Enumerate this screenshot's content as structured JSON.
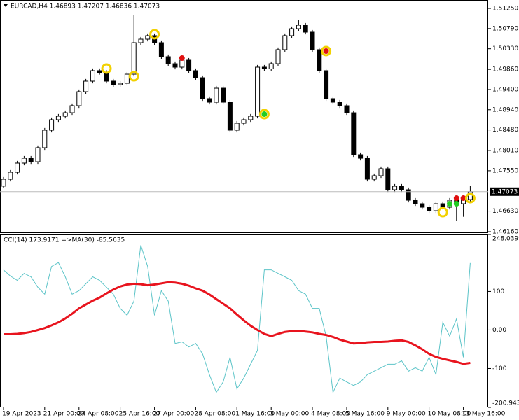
{
  "chart_data": [
    {
      "type": "candlestick",
      "title": "EURCAD,H4  1.46893 1.47207 1.46836 1.47073",
      "open": [
        1.472,
        1.47357,
        1.47516,
        1.47724,
        1.47835,
        1.47755,
        1.48075,
        1.48474,
        1.48713,
        1.48793,
        1.48872,
        1.49032,
        1.49351,
        1.49591,
        1.4983,
        1.4979,
        1.49591,
        1.49511,
        1.49543,
        1.4975,
        1.50468,
        1.50548,
        1.50628,
        1.50468,
        1.50149,
        1.49989,
        1.4991,
        1.50069,
        1.4983,
        1.4967,
        1.49192,
        1.49112,
        1.49431,
        1.49112,
        1.48474,
        1.48633,
        1.48713,
        1.48793,
        1.4991,
        1.4987,
        1.49989,
        1.50309,
        1.50628,
        1.50787,
        1.50867,
        1.50708,
        1.50309,
        1.4983,
        1.49192,
        1.49112,
        1.49032,
        1.48872,
        1.47915,
        1.47835,
        1.47357,
        1.47436,
        1.47596,
        1.47117,
        1.47197,
        1.47117,
        1.46878,
        1.46798,
        1.46718,
        1.46638,
        1.46798,
        1.46718,
        1.46878,
        1.46798,
        1.46893
      ],
      "high": [
        1.47407,
        1.47566,
        1.47774,
        1.47885,
        1.47885,
        1.48125,
        1.48524,
        1.48763,
        1.48843,
        1.48922,
        1.49082,
        1.49401,
        1.49641,
        1.4988,
        1.4988,
        1.4984,
        1.49641,
        1.49593,
        1.498,
        1.511,
        1.50598,
        1.50678,
        1.50678,
        1.50518,
        1.50199,
        1.50039,
        1.50119,
        1.50119,
        1.4988,
        1.4972,
        1.49242,
        1.49481,
        1.49481,
        1.49162,
        1.48683,
        1.48763,
        1.48843,
        1.4996,
        1.4996,
        1.50039,
        1.50359,
        1.50678,
        1.50837,
        1.5098,
        1.50917,
        1.50758,
        1.50359,
        1.4988,
        1.49242,
        1.49162,
        1.49082,
        1.48922,
        1.47965,
        1.47885,
        1.47486,
        1.47646,
        1.47646,
        1.47247,
        1.47247,
        1.47167,
        1.46928,
        1.46848,
        1.46768,
        1.46848,
        1.46848,
        1.46928,
        1.46928,
        1.46943,
        1.47207
      ],
      "low": [
        1.4715,
        1.47307,
        1.47466,
        1.47674,
        1.47705,
        1.47705,
        1.48025,
        1.48424,
        1.48663,
        1.48743,
        1.48822,
        1.48982,
        1.49301,
        1.49541,
        1.4974,
        1.49541,
        1.49461,
        1.49461,
        1.49493,
        1.497,
        1.50418,
        1.50498,
        1.50418,
        1.50099,
        1.49939,
        1.4986,
        1.4986,
        1.4978,
        1.4962,
        1.49142,
        1.49062,
        1.49062,
        1.49062,
        1.48424,
        1.48424,
        1.48583,
        1.48663,
        1.48743,
        1.4982,
        1.4982,
        1.49939,
        1.50259,
        1.50578,
        1.50737,
        1.50658,
        1.50259,
        1.4978,
        1.49142,
        1.49062,
        1.48982,
        1.48822,
        1.47865,
        1.47785,
        1.47307,
        1.47307,
        1.47386,
        1.47067,
        1.47067,
        1.47067,
        1.46828,
        1.46748,
        1.46668,
        1.46588,
        1.46588,
        1.46668,
        1.46668,
        1.464,
        1.465,
        1.46836
      ],
      "close": [
        1.47357,
        1.47516,
        1.47724,
        1.47835,
        1.47755,
        1.48075,
        1.48474,
        1.48713,
        1.48793,
        1.48872,
        1.49032,
        1.49351,
        1.49591,
        1.4983,
        1.4979,
        1.49591,
        1.49511,
        1.49543,
        1.4975,
        1.50468,
        1.50548,
        1.50628,
        1.50468,
        1.50149,
        1.49989,
        1.4991,
        1.50069,
        1.4983,
        1.4967,
        1.49192,
        1.49112,
        1.49431,
        1.49112,
        1.48474,
        1.48633,
        1.48713,
        1.48793,
        1.4991,
        1.4987,
        1.49989,
        1.50309,
        1.50628,
        1.50787,
        1.50867,
        1.50708,
        1.50309,
        1.4983,
        1.49192,
        1.49112,
        1.49032,
        1.48872,
        1.47915,
        1.47835,
        1.47357,
        1.47436,
        1.47596,
        1.47117,
        1.47197,
        1.47117,
        1.46878,
        1.46798,
        1.46718,
        1.46638,
        1.46798,
        1.46718,
        1.46878,
        1.46798,
        1.46893,
        1.47073
      ],
      "markers": [
        {
          "index": 15,
          "price": 1.49878,
          "kind": "ring",
          "color": "#f2d100"
        },
        {
          "index": 19,
          "price": 1.49702,
          "kind": "ring",
          "color": "#f2d100"
        },
        {
          "index": 22,
          "price": 1.5066,
          "kind": "ring",
          "color": "#f2d100"
        },
        {
          "index": 26,
          "price": 1.50117,
          "kind": "dot",
          "color": "#e01010"
        },
        {
          "index": 38,
          "price": 1.4884,
          "kind": "ring",
          "color": "#f2d100"
        },
        {
          "index": 38,
          "price": 1.4884,
          "kind": "dot",
          "color": "#22cc22"
        },
        {
          "index": 47,
          "price": 1.50277,
          "kind": "ring",
          "color": "#f2d100"
        },
        {
          "index": 47,
          "price": 1.50277,
          "kind": "dot",
          "color": "#e01010"
        },
        {
          "index": 64,
          "price": 1.46606,
          "kind": "ring",
          "color": "#f2d100"
        },
        {
          "index": 65,
          "price": 1.46798,
          "kind": "dot",
          "color": "#22cc22"
        },
        {
          "index": 66,
          "price": 1.46925,
          "kind": "dot",
          "color": "#e01010"
        },
        {
          "index": 66,
          "price": 1.46798,
          "kind": "dot",
          "color": "#22cc22"
        },
        {
          "index": 67,
          "price": 1.46925,
          "kind": "dot",
          "color": "#e01010"
        },
        {
          "index": 68,
          "price": 1.46925,
          "kind": "ring",
          "color": "#f2d100"
        }
      ],
      "current_price": 1.47073,
      "ylim": [
        1.46144,
        1.51426
      ],
      "yticks": [
        {
          "value": 1.5125,
          "label": "1.51250"
        },
        {
          "value": 1.5079,
          "label": "1.50790"
        },
        {
          "value": 1.5033,
          "label": "1.50330"
        },
        {
          "value": 1.4986,
          "label": "1.49860"
        },
        {
          "value": 1.494,
          "label": "1.49400"
        },
        {
          "value": 1.4894,
          "label": "1.48940"
        },
        {
          "value": 1.4848,
          "label": "1.48480"
        },
        {
          "value": 1.4801,
          "label": "1.48010"
        },
        {
          "value": 1.4755,
          "label": "1.47550"
        },
        {
          "value": 1.4663,
          "label": "1.46630"
        },
        {
          "value": 1.4616,
          "label": "1.46160"
        }
      ]
    },
    {
      "type": "line",
      "title": "CCI(14) 173.9171  =>MA(30) -85.5635",
      "series": [
        {
          "name": "CCI(14)",
          "color": "#5cc4c8",
          "values": [
            156,
            140,
            129,
            147,
            138,
            111,
            93,
            165,
            175,
            138,
            93,
            102,
            120,
            138,
            129,
            111,
            93,
            56,
            38,
            75,
            220,
            165,
            38,
            102,
            75,
            -35,
            -31,
            -44,
            -35,
            -62,
            -116,
            -162,
            -135,
            -71,
            -153,
            -125,
            -89,
            -53,
            156,
            156,
            147,
            138,
            129,
            102,
            93,
            56,
            56,
            -16,
            -162,
            -125,
            -135,
            -144,
            -135,
            -116,
            -107,
            -98,
            -89,
            -89,
            -80,
            -107,
            -98,
            -107,
            -71,
            -116,
            20,
            -16,
            29,
            -71,
            173.9171
          ]
        },
        {
          "name": "MA(30)",
          "color": "#e8141e",
          "values": [
            -11,
            -11,
            -10,
            -8,
            -5,
            0,
            5,
            12,
            20,
            30,
            42,
            56,
            66,
            76,
            84,
            95,
            105,
            113,
            118,
            120,
            119,
            116,
            118,
            121,
            124,
            123,
            120,
            115,
            108,
            102,
            92,
            80,
            68,
            56,
            40,
            25,
            11,
            0,
            -10,
            -16,
            -10,
            -5,
            -3,
            -2,
            -4,
            -6,
            -10,
            -13,
            -18,
            -25,
            -30,
            -35,
            -34,
            -32,
            -31,
            -31,
            -30,
            -28,
            -27,
            -31,
            -40,
            -50,
            -62,
            -70,
            -75,
            -79,
            -83,
            -88,
            -85.5635
          ]
        }
      ],
      "ylim": [
        -200.9433,
        248.0399
      ],
      "yticks": [
        248.0399,
        100,
        {
          "value": 0,
          "label": "0.00"
        },
        -100,
        -200.9433
      ],
      "xticks": [
        {
          "value": 0,
          "label": "19 Apr 2023"
        },
        {
          "value": 6,
          "label": "21 Apr 00:00"
        },
        {
          "value": 11,
          "label": "24 Apr 08:00"
        },
        {
          "value": 17,
          "label": "25 Apr 16:00"
        },
        {
          "value": 22,
          "label": "27 Apr 00:00"
        },
        {
          "value": 28,
          "label": "28 Apr 08:00"
        },
        {
          "value": 34,
          "label": "1 May 16:00"
        },
        {
          "value": 39,
          "label": "3 May 00:00"
        },
        {
          "value": 45,
          "label": "4 May 08:00"
        },
        {
          "value": 50,
          "label": "5 May 16:00"
        },
        {
          "value": 56,
          "label": "9 May 00:00"
        },
        {
          "value": 62,
          "label": "10 May 08:00"
        },
        {
          "value": 67,
          "label": "11 May 16:00"
        }
      ]
    }
  ]
}
